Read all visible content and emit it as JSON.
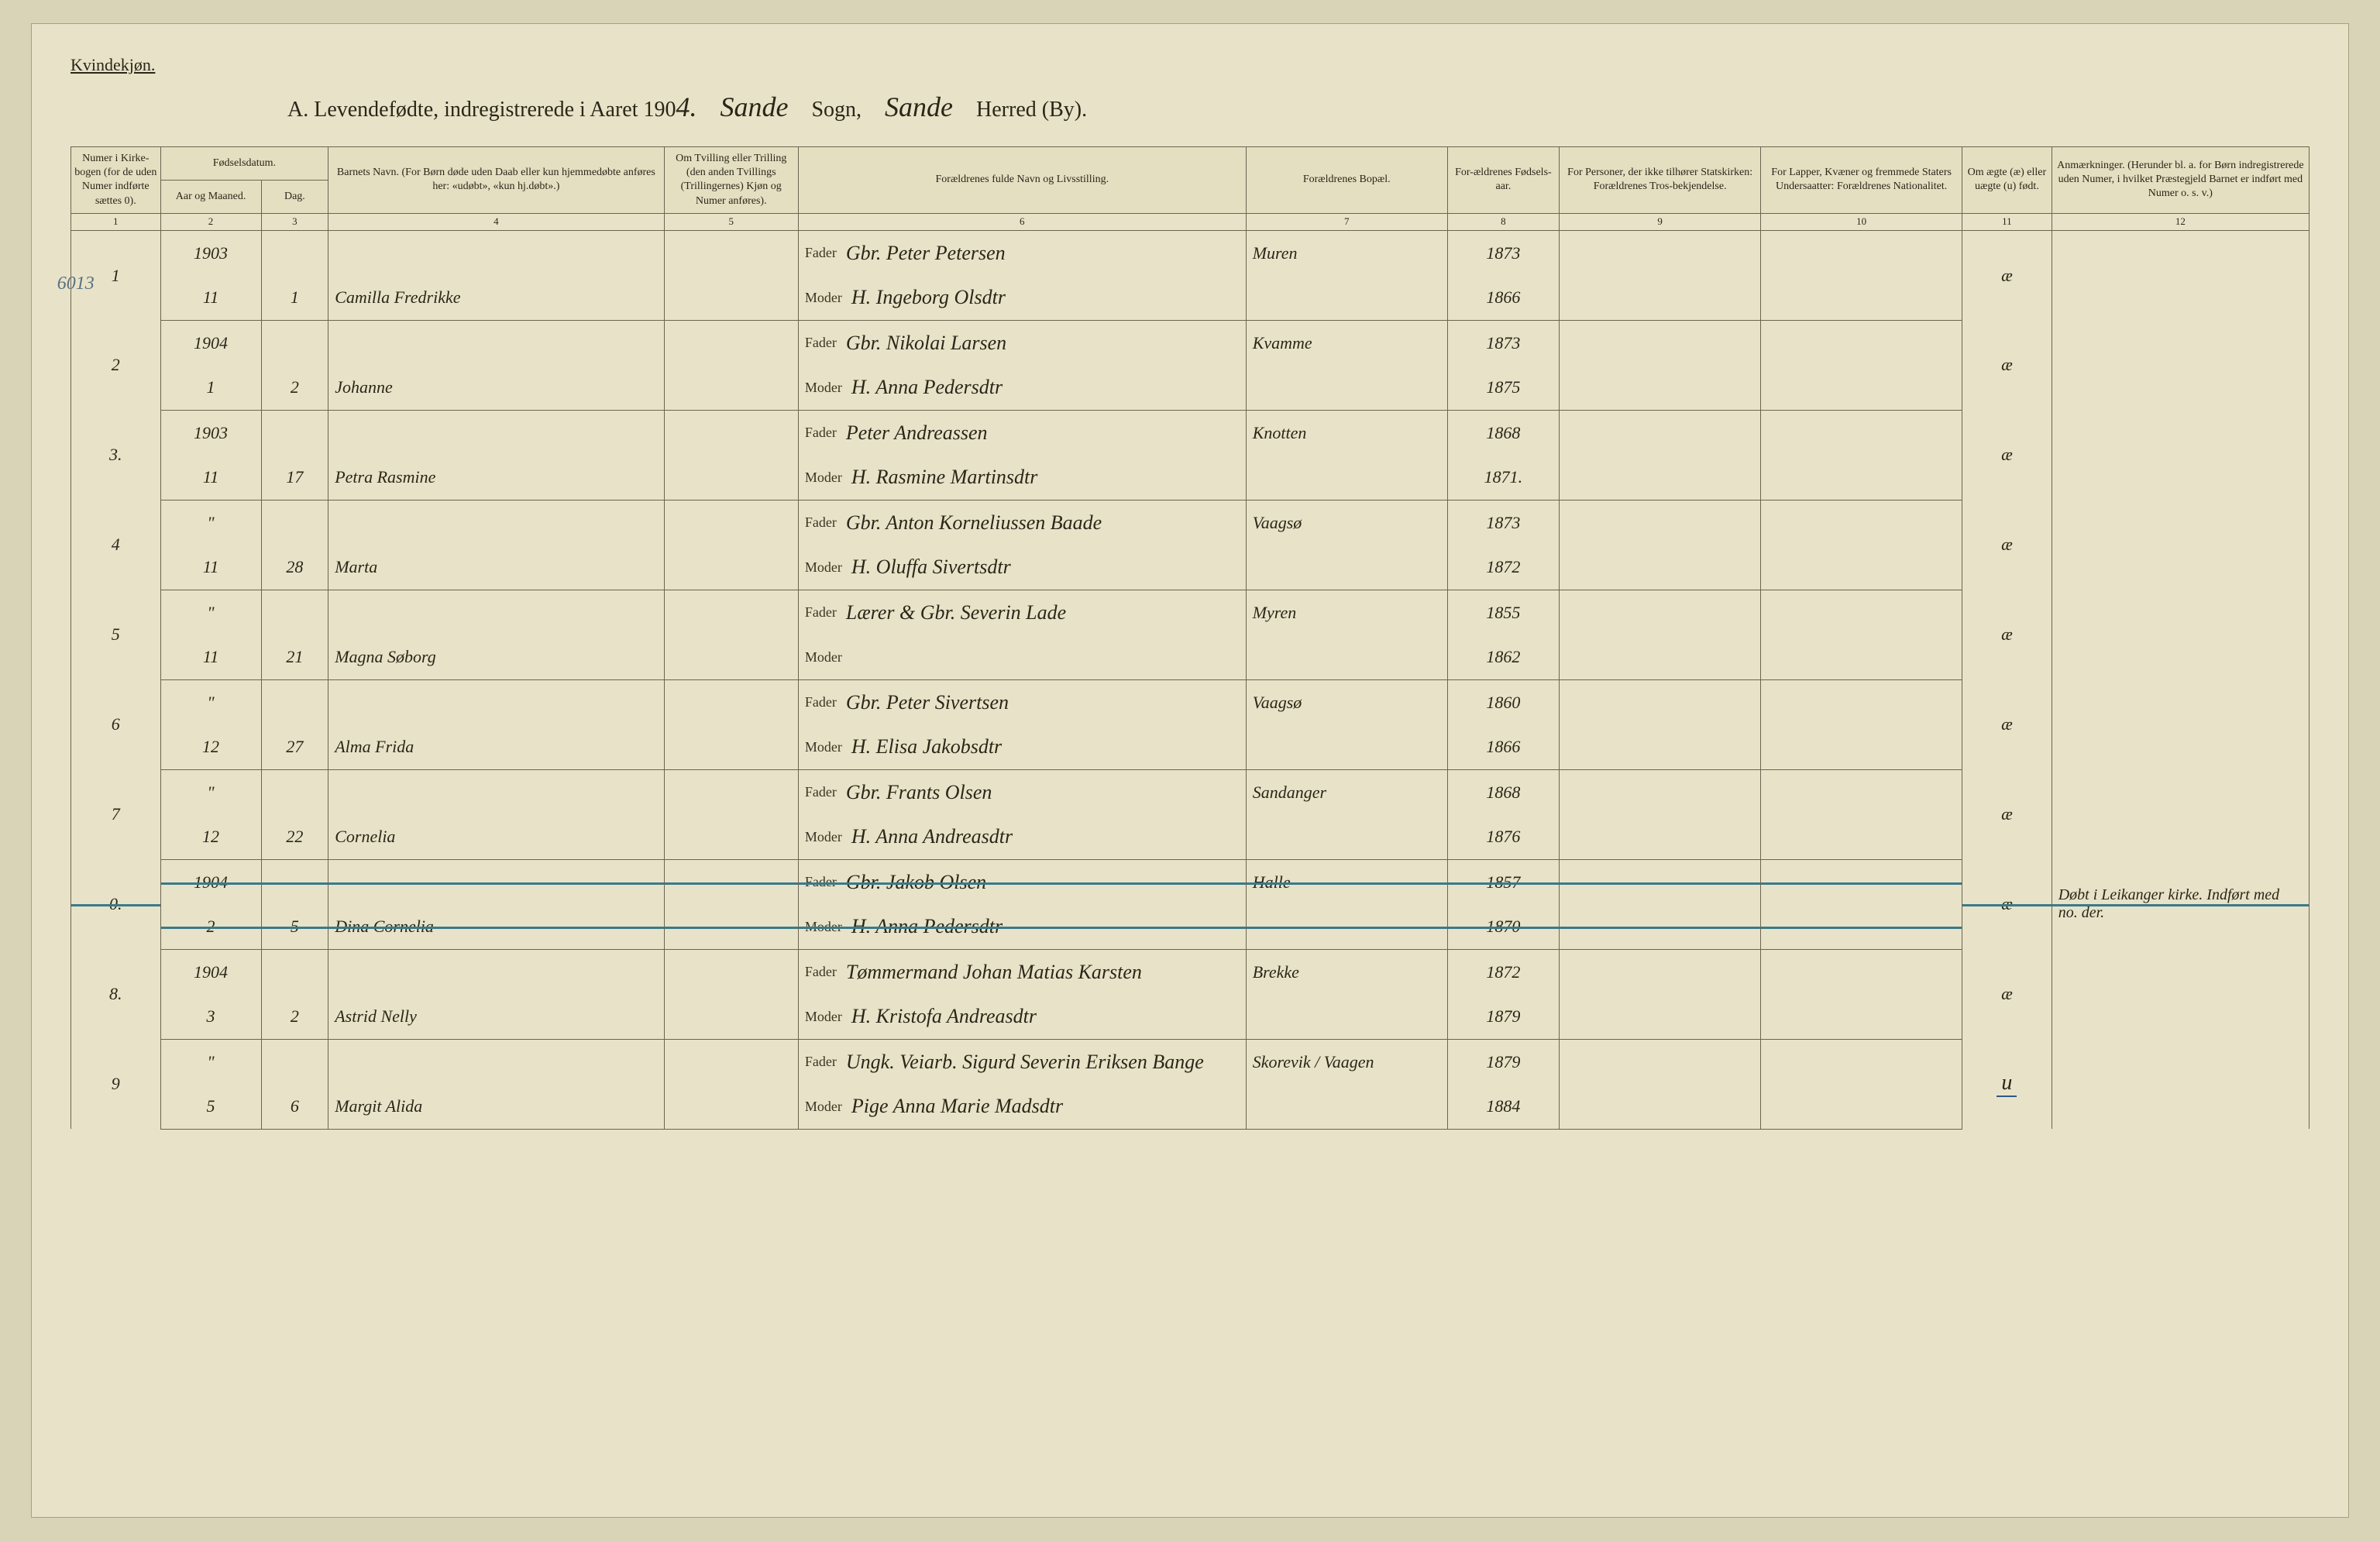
{
  "gender_label": "Kvindekjøn.",
  "title": {
    "prefix": "A.  Levendefødte, indregistrerede i Aaret 190",
    "year_hand": "4.",
    "sogn_hand": "Sande",
    "sogn_label": "Sogn,",
    "herred_hand": "Sande",
    "herred_label": "Herred (By)."
  },
  "headers": {
    "c1": "Numer i Kirke-bogen (for de uden Numer indførte sættes 0).",
    "c2_group": "Fødselsdatum.",
    "c2a": "Aar og Maaned.",
    "c2b": "Dag.",
    "c4": "Barnets Navn.\n(For Børn døde uden Daab eller kun hjemmedøbte anføres her: «udøbt», «kun hj.døbt».)",
    "c5": "Om Tvilling eller Trilling (den anden Tvillings (Trillingernes) Kjøn og Numer anføres).",
    "c6": "Forældrenes fulde Navn og Livsstilling.",
    "c7": "Forældrenes Bopæl.",
    "c8": "For-ældrenes Fødsels-aar.",
    "c9": "For Personer, der ikke tilhører Statskirken: Forældrenes Tros-bekjendelse.",
    "c10": "For Lapper, Kvæner og fremmede Staters Undersaatter: Forældrenes Nationalitet.",
    "c11": "Om ægte (æ) eller uægte (u) født.",
    "c12": "Anmærkninger.\n(Herunder bl. a. for Børn indregistrerede uden Numer, i hvilket Præstegjeld Barnet er indført med Numer o. s. v.)"
  },
  "col_nums": [
    "1",
    "2",
    "3",
    "4",
    "5",
    "6",
    "7",
    "8",
    "9",
    "10",
    "11",
    "12"
  ],
  "margin_note": "6013",
  "fader_label": "Fader",
  "moder_label": "Moder",
  "entries": [
    {
      "num": "1",
      "year_month_top": "1903",
      "year_month_bot": "11",
      "day": "1",
      "name": "Camilla Fredrikke",
      "fader": "Gbr. Peter Petersen",
      "moder": "H. Ingeborg Olsdtr",
      "bopel": "Muren",
      "far_aar": "1873",
      "mor_aar": "1866",
      "legit": "æ",
      "remarks": "",
      "struck": false
    },
    {
      "num": "2",
      "year_month_top": "1904",
      "year_month_bot": "1",
      "day": "2",
      "name": "Johanne",
      "fader": "Gbr. Nikolai Larsen",
      "moder": "H. Anna Pedersdtr",
      "bopel": "Kvamme",
      "far_aar": "1873",
      "mor_aar": "1875",
      "legit": "æ",
      "remarks": "",
      "struck": false
    },
    {
      "num": "3.",
      "year_month_top": "1903",
      "year_month_bot": "11",
      "day": "17",
      "name": "Petra Rasmine",
      "fader": "Peter Andreassen",
      "moder": "H. Rasmine Martinsdtr",
      "bopel": "Knotten",
      "far_aar": "1868",
      "mor_aar": "1871.",
      "legit": "æ",
      "remarks": "",
      "struck": false
    },
    {
      "num": "4",
      "year_month_top": "\"",
      "year_month_bot": "11",
      "day": "28",
      "name": "Marta",
      "fader": "Gbr. Anton Korneliussen Baade",
      "moder": "H. Oluffa Sivertsdtr",
      "bopel": "Vaagsø",
      "far_aar": "1873",
      "mor_aar": "1872",
      "legit": "æ",
      "remarks": "",
      "struck": false
    },
    {
      "num": "5",
      "year_month_top": "\"",
      "year_month_bot": "11",
      "day": "21",
      "name": "Magna Søborg",
      "fader": "Lærer & Gbr. Severin Lade",
      "moder": "",
      "bopel": "Myren",
      "far_aar": "1855",
      "mor_aar": "1862",
      "legit": "æ",
      "remarks": "",
      "struck": false
    },
    {
      "num": "6",
      "year_month_top": "\"",
      "year_month_bot": "12",
      "day": "27",
      "name": "Alma Frida",
      "fader": "Gbr. Peter Sivertsen",
      "moder": "H. Elisa Jakobsdtr",
      "bopel": "Vaagsø",
      "far_aar": "1860",
      "mor_aar": "1866",
      "legit": "æ",
      "remarks": "",
      "struck": false
    },
    {
      "num": "7",
      "year_month_top": "\"",
      "year_month_bot": "12",
      "day": "22",
      "name": "Cornelia",
      "fader": "Gbr. Frants Olsen",
      "moder": "H. Anna Andreasdtr",
      "bopel": "Sandanger",
      "far_aar": "1868",
      "mor_aar": "1876",
      "legit": "æ",
      "remarks": "",
      "struck": false
    },
    {
      "num": "0.",
      "year_month_top": "1904",
      "year_month_bot": "2",
      "day": "5",
      "name": "Dina Cornelia",
      "fader": "Gbr. Jakob Olsen",
      "moder": "H. Anna Pedersdtr",
      "bopel": "Halle",
      "far_aar": "1857",
      "mor_aar": "1870",
      "legit": "æ",
      "remarks": "Døbt i Leikanger kirke. Indført med no. der.",
      "struck": true
    },
    {
      "num": "8.",
      "year_month_top": "1904",
      "year_month_bot": "3",
      "day": "2",
      "name": "Astrid Nelly",
      "fader": "Tømmermand Johan Matias Karsten",
      "moder": "H. Kristofa Andreasdtr",
      "bopel": "Brekke",
      "far_aar": "1872",
      "mor_aar": "1879",
      "legit": "æ",
      "remarks": "",
      "struck": false
    },
    {
      "num": "9",
      "year_month_top": "\"",
      "year_month_bot": "5",
      "day": "6",
      "name": "Margit Alida",
      "fader": "Ungk. Veiarb. Sigurd Severin Eriksen Bange",
      "moder": "Pige Anna Marie Madsdtr",
      "bopel": "Skorevik / Vaagen",
      "far_aar": "1879",
      "mor_aar": "1884",
      "legit": "u",
      "remarks": "",
      "struck": false,
      "legit_underlined": true
    }
  ],
  "colors": {
    "paper": "#e8e3c8",
    "border": "#6b6450",
    "ink": "#2a2618",
    "strike": "#3a7a8a"
  }
}
